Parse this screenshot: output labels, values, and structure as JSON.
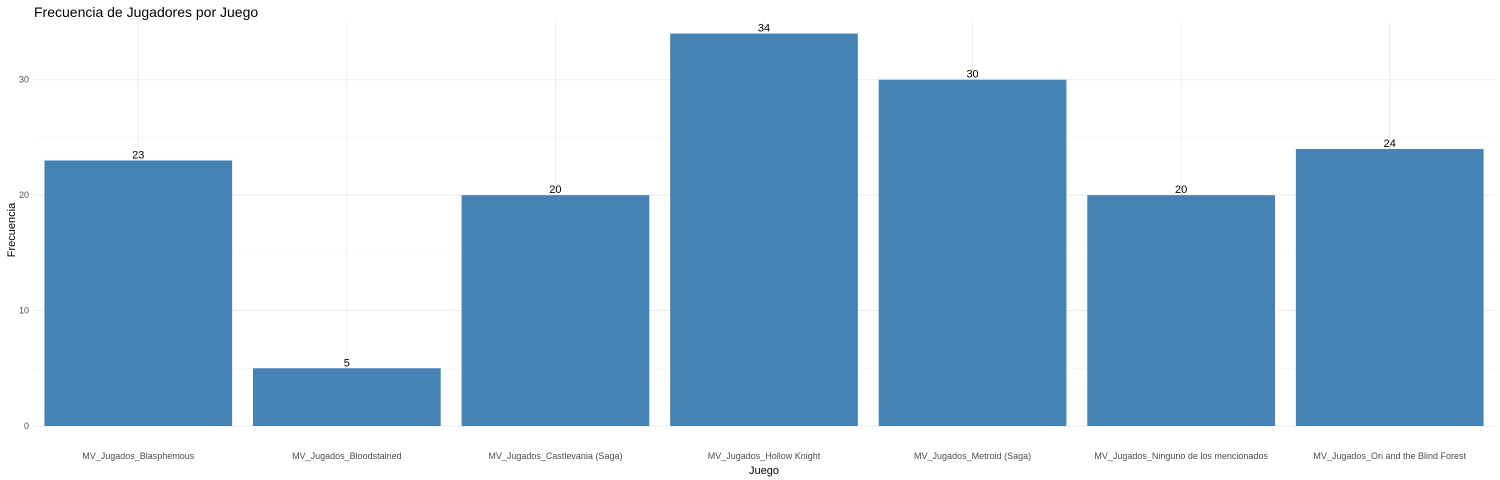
{
  "chart_data": {
    "type": "bar",
    "title": "Frecuencia de Jugadores por Juego",
    "xlabel": "Juego",
    "ylabel": "Frecuencia",
    "categories": [
      "MV_Jugados_Blasphemous",
      "MV_Jugados_Bloodstained",
      "MV_Jugados_Castlevania (Saga)",
      "MV_Jugados_Hollow Knight",
      "MV_Jugados_Metroid (Saga)",
      "MV_Jugados_Ninguno de los mencionados",
      "MV_Jugados_Ori and the Blind Forest"
    ],
    "values": [
      23,
      5,
      20,
      34,
      30,
      20,
      24
    ],
    "ylim": [
      0,
      35
    ],
    "yticks": [
      0,
      10,
      20,
      30
    ],
    "grid": true,
    "bar_color": "#4682B4"
  }
}
